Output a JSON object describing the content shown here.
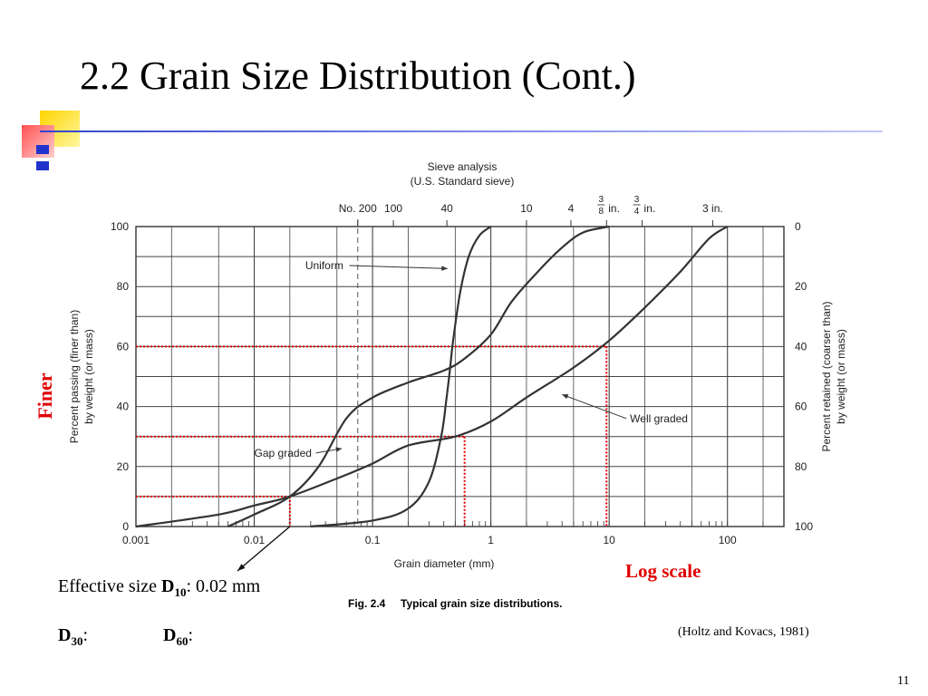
{
  "slide": {
    "title": "2.2 Grain Size Distribution (Cont.)",
    "finer_label": "Finer",
    "log_scale_label": "Log scale",
    "effective_size_prefix": "Effective size ",
    "d10_main": "D",
    "d10_sub": "10",
    "effective_size_value": ": 0.02 mm",
    "d30_main": "D",
    "d30_sub": "30",
    "d30_colon": ":",
    "d60_main": "D",
    "d60_sub": "60",
    "d60_colon": ":",
    "citation": "(Holtz and Kovacs, 1981)",
    "page_number": "11",
    "accent_color": "#e00000"
  },
  "figure": {
    "caption_num": "Fig. 2.4",
    "caption_text": "Typical grain size distributions."
  },
  "chart_data": {
    "type": "line",
    "top_label_line1": "Sieve analysis",
    "top_label_line2": "(U.S. Standard sieve)",
    "sieve_labels": [
      {
        "label": "No. 200",
        "x": 0.075
      },
      {
        "label": "100",
        "x": 0.15
      },
      {
        "label": "40",
        "x": 0.425
      },
      {
        "label": "10",
        "x": 2.0
      },
      {
        "label": "4",
        "x": 4.75
      },
      {
        "label_num": "3",
        "label_den": "8",
        "label_unit": "in.",
        "x": 9.5
      },
      {
        "label_num": "3",
        "label_den": "4",
        "label_unit": "in.",
        "x": 19.0
      },
      {
        "label": "3 in.",
        "x": 75.0
      }
    ],
    "xlabel": "Grain diameter (mm)",
    "xscale": "log",
    "xlim": [
      0.001,
      300
    ],
    "x_ticks": [
      {
        "value": 0.001,
        "label": "0.001"
      },
      {
        "value": 0.01,
        "label": "0.01"
      },
      {
        "value": 0.1,
        "label": "0.1"
      },
      {
        "value": 1,
        "label": "1"
      },
      {
        "value": 10,
        "label": "10"
      },
      {
        "value": 100,
        "label": "100"
      }
    ],
    "ylabel_left_line1": "Percent passing (finer than)",
    "ylabel_left_line2": "by weight (or mass)",
    "ylim": [
      0,
      100
    ],
    "y_ticks": [
      0,
      20,
      40,
      60,
      80,
      100
    ],
    "ylabel_right_line1": "Percent retained (coarser than)",
    "ylabel_right_line2": "by weight (or mass)",
    "y_right_ticks": [
      100,
      80,
      60,
      40,
      20,
      0
    ],
    "grid": true,
    "series": [
      {
        "name": "Uniform",
        "points": [
          [
            0.03,
            0
          ],
          [
            0.1,
            2
          ],
          [
            0.2,
            6
          ],
          [
            0.3,
            15
          ],
          [
            0.38,
            30
          ],
          [
            0.42,
            42
          ],
          [
            0.45,
            52
          ],
          [
            0.48,
            62
          ],
          [
            0.55,
            78
          ],
          [
            0.65,
            90
          ],
          [
            0.8,
            97
          ],
          [
            1.0,
            100
          ]
        ]
      },
      {
        "name": "Gap graded",
        "points": [
          [
            0.006,
            0
          ],
          [
            0.01,
            4
          ],
          [
            0.02,
            10
          ],
          [
            0.035,
            20
          ],
          [
            0.06,
            36
          ],
          [
            0.1,
            43
          ],
          [
            0.2,
            48
          ],
          [
            0.4,
            52
          ],
          [
            0.6,
            56
          ],
          [
            1.0,
            64
          ],
          [
            1.5,
            75
          ],
          [
            2.5,
            85
          ],
          [
            4.0,
            93
          ],
          [
            6.0,
            98
          ],
          [
            10.0,
            100
          ]
        ]
      },
      {
        "name": "Well graded",
        "points": [
          [
            0.001,
            0
          ],
          [
            0.005,
            4
          ],
          [
            0.01,
            7
          ],
          [
            0.02,
            10
          ],
          [
            0.05,
            16
          ],
          [
            0.1,
            21
          ],
          [
            0.2,
            27
          ],
          [
            0.5,
            30
          ],
          [
            1.0,
            35
          ],
          [
            2.0,
            43
          ],
          [
            5.0,
            53
          ],
          [
            10.0,
            62
          ],
          [
            20.0,
            73
          ],
          [
            40.0,
            85
          ],
          [
            70.0,
            96
          ],
          [
            100.0,
            100
          ]
        ]
      }
    ],
    "annotations": [
      {
        "text": "Uniform",
        "target_x": 0.43,
        "target_y": 86,
        "text_x": 0.027,
        "text_y": 87
      },
      {
        "text": "Well graded",
        "target_x": 4.0,
        "target_y": 44,
        "text_x": 15.0,
        "text_y": 36
      },
      {
        "text": "Gap graded",
        "target_x": 0.055,
        "target_y": 26,
        "text_x": 0.01,
        "text_y": 24.5
      }
    ],
    "reference_lines": [
      {
        "percent": 60,
        "diameter": 9.5
      },
      {
        "percent": 30,
        "diameter": 0.6
      },
      {
        "percent": 10,
        "diameter": 0.02
      }
    ],
    "dashed_vertical_x": 0.075,
    "reference_color": "#e00000"
  }
}
